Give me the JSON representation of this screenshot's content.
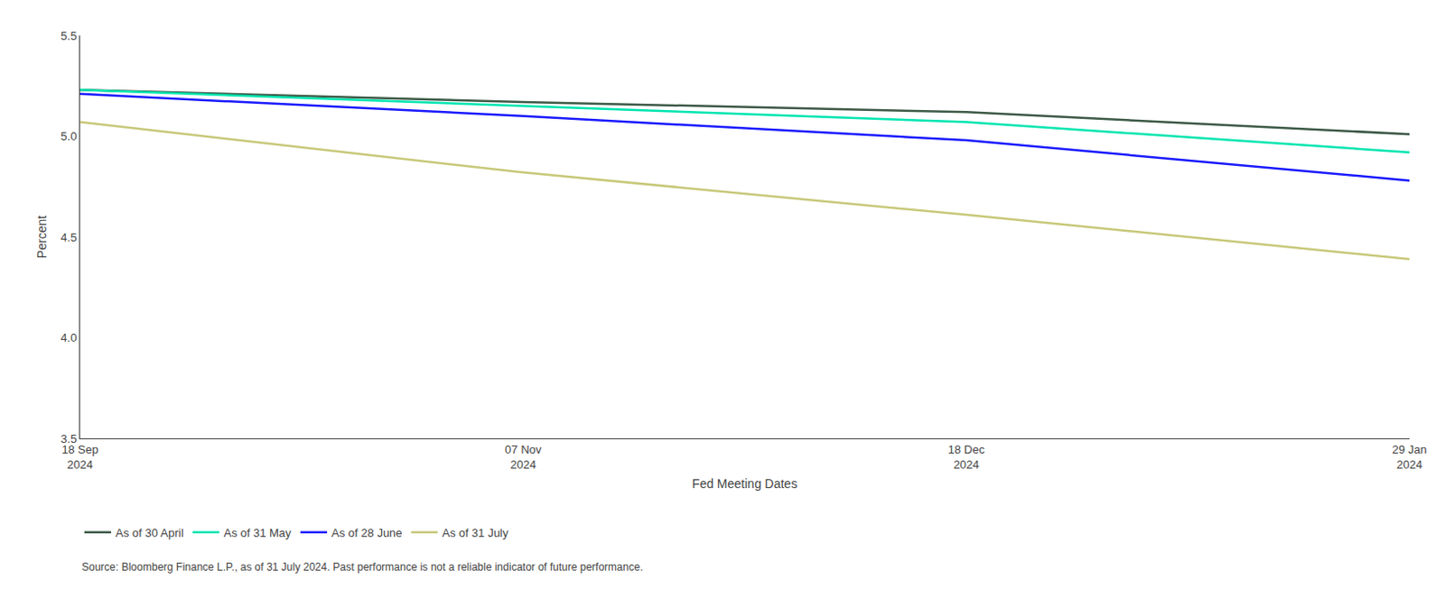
{
  "chart_data": {
    "type": "line",
    "xlabel": "Fed Meeting Dates",
    "ylabel": "Percent",
    "categories": [
      "18 Sep\n2024",
      "07 Nov\n2024",
      "18 Dec\n2024",
      "29 Jan\n2024"
    ],
    "series": [
      {
        "name": "As of 30 April",
        "color": "#3d5a47",
        "values": [
          5.23,
          5.17,
          5.12,
          5.01
        ]
      },
      {
        "name": "As of 31 May",
        "color": "#00e5b0",
        "values": [
          5.23,
          5.15,
          5.07,
          4.92
        ]
      },
      {
        "name": "As of 28 June",
        "color": "#1a1aff",
        "values": [
          5.21,
          5.1,
          4.98,
          4.78
        ]
      },
      {
        "name": "As of 31 July",
        "color": "#c8c87a",
        "values": [
          5.07,
          4.82,
          4.61,
          4.39
        ]
      }
    ],
    "ylim": [
      3.5,
      5.5
    ],
    "yticks": [
      3.5,
      {
        "value": 4.0,
        "label": "4.0"
      },
      4.5,
      {
        "value": 5.0,
        "label": "5.0"
      },
      5.5
    ],
    "grid": false,
    "legend": "bottom",
    "annotations": [
      "Source: Bloomberg Finance L.P., as of 31 July 2024. Past performance is not a reliable indicator of future performance."
    ]
  }
}
